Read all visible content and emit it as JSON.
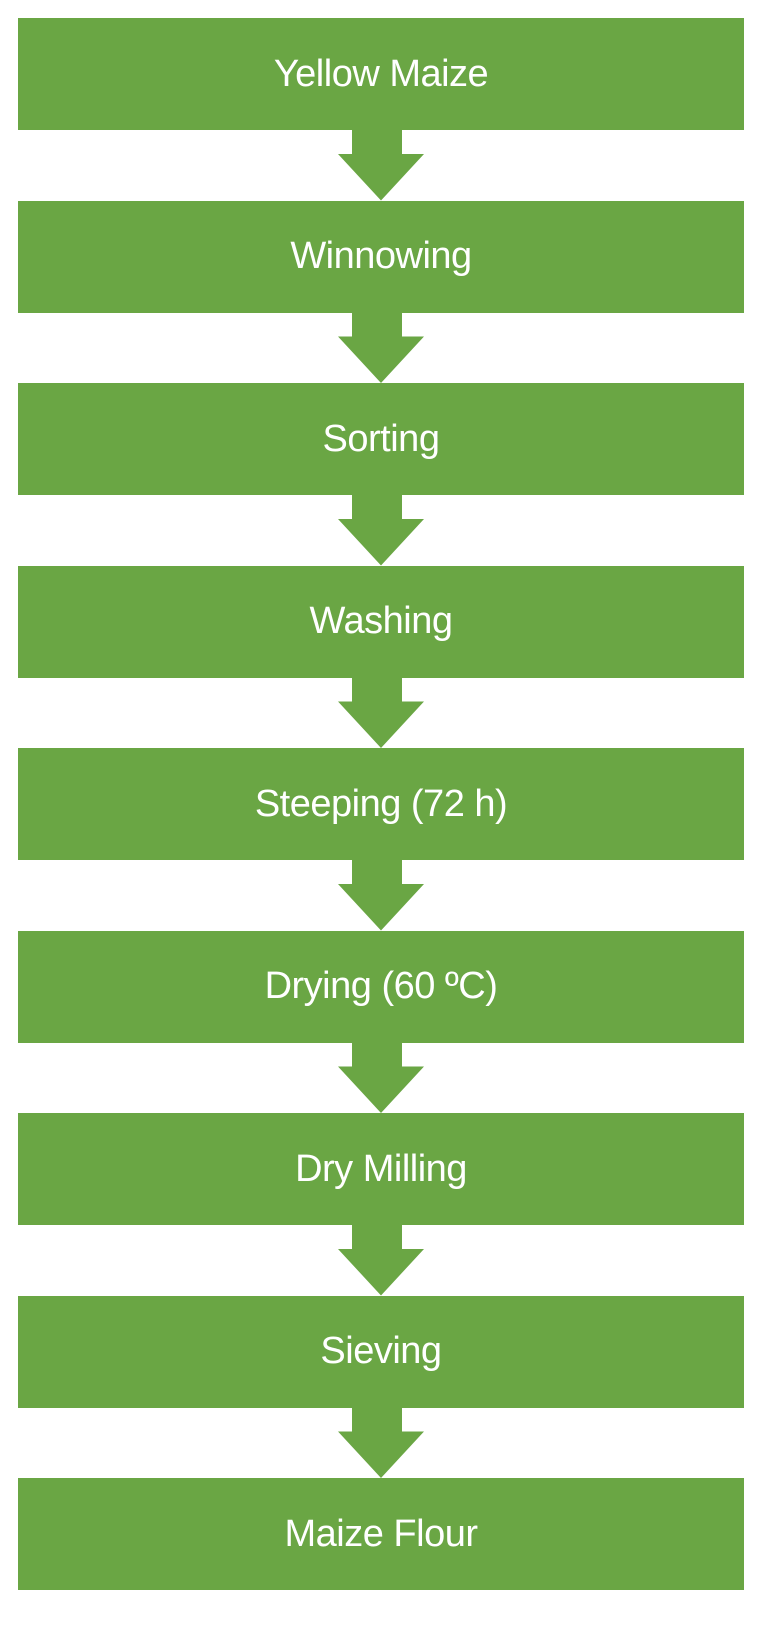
{
  "colors": {
    "box_fill": "#6aa644",
    "text": "#ffffff",
    "arrow": "#6aa644"
  },
  "steps": [
    {
      "label": "Yellow Maize"
    },
    {
      "label": "Winnowing"
    },
    {
      "label": "Sorting"
    },
    {
      "label": "Washing"
    },
    {
      "label": "Steeping (72 h)"
    },
    {
      "label": "Drying (60 ºC)"
    },
    {
      "label": "Dry Milling"
    },
    {
      "label": "Sieving"
    },
    {
      "label": "Maize Flour"
    }
  ]
}
